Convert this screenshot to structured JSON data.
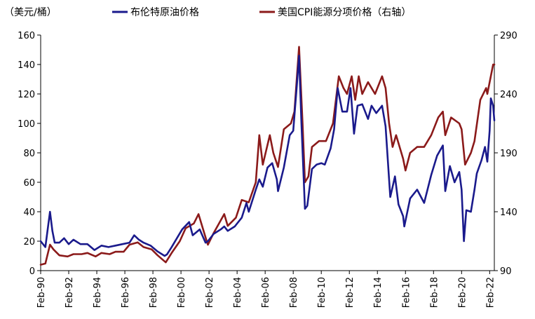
{
  "chart_data": {
    "type": "line",
    "title": "",
    "y_left_unit": "（美元/桶）",
    "y_left_lim": [
      0,
      160
    ],
    "y_left_ticks": [
      "0",
      "20",
      "40",
      "60",
      "80",
      "100",
      "120",
      "140",
      "160"
    ],
    "y_right_label": "",
    "y_right_lim": [
      90,
      290
    ],
    "y_right_ticks": [
      "90",
      "140",
      "190",
      "240",
      "290"
    ],
    "x_lim": [
      "1990-02",
      "2022-06"
    ],
    "x_tick_labels": [
      "Feb-90",
      "Feb-92",
      "Feb-94",
      "Feb-96",
      "Feb-98",
      "Feb-00",
      "Feb-02",
      "Feb-04",
      "Feb-06",
      "Feb-08",
      "Feb-10",
      "Feb-12",
      "Feb-14",
      "Feb-16",
      "Feb-18",
      "Feb-20",
      "Feb-22"
    ],
    "grid": false,
    "legend_position": "top",
    "series": [
      {
        "name": "布伦特原油价格",
        "axis": "left",
        "color": "#1a1a8c",
        "points": [
          [
            "1990-02",
            20
          ],
          [
            "1990-06",
            16
          ],
          [
            "1990-08",
            28
          ],
          [
            "1990-10",
            40
          ],
          [
            "1990-12",
            27
          ],
          [
            "1991-02",
            19
          ],
          [
            "1991-06",
            19
          ],
          [
            "1991-10",
            22
          ],
          [
            "1992-02",
            18
          ],
          [
            "1992-06",
            21
          ],
          [
            "1992-12",
            18
          ],
          [
            "1993-06",
            18
          ],
          [
            "1993-12",
            14
          ],
          [
            "1994-06",
            17
          ],
          [
            "1994-12",
            16
          ],
          [
            "1995-06",
            17
          ],
          [
            "1995-12",
            18
          ],
          [
            "1996-06",
            19
          ],
          [
            "1996-10",
            24
          ],
          [
            "1997-02",
            21
          ],
          [
            "1997-06",
            19
          ],
          [
            "1997-12",
            17
          ],
          [
            "1998-06",
            13
          ],
          [
            "1998-12",
            10
          ],
          [
            "1999-02",
            11
          ],
          [
            "1999-06",
            16
          ],
          [
            "1999-12",
            24
          ],
          [
            "2000-03",
            28
          ],
          [
            "2000-09",
            33
          ],
          [
            "2000-12",
            24
          ],
          [
            "2001-06",
            28
          ],
          [
            "2001-11",
            19
          ],
          [
            "2002-01",
            20
          ],
          [
            "2002-06",
            25
          ],
          [
            "2002-12",
            28
          ],
          [
            "2003-03",
            30
          ],
          [
            "2003-06",
            27
          ],
          [
            "2003-12",
            30
          ],
          [
            "2004-06",
            36
          ],
          [
            "2004-10",
            46
          ],
          [
            "2004-12",
            40
          ],
          [
            "2005-06",
            55
          ],
          [
            "2005-09",
            62
          ],
          [
            "2005-12",
            57
          ],
          [
            "2006-04",
            70
          ],
          [
            "2006-08",
            73
          ],
          [
            "2006-12",
            62
          ],
          [
            "2007-01",
            54
          ],
          [
            "2007-06",
            70
          ],
          [
            "2007-11",
            92
          ],
          [
            "2008-02",
            95
          ],
          [
            "2008-05",
            125
          ],
          [
            "2008-07",
            146
          ],
          [
            "2008-09",
            100
          ],
          [
            "2008-12",
            42
          ],
          [
            "2009-02",
            44
          ],
          [
            "2009-06",
            69
          ],
          [
            "2009-10",
            72
          ],
          [
            "2010-02",
            73
          ],
          [
            "2010-05",
            72
          ],
          [
            "2010-10",
            83
          ],
          [
            "2011-01",
            96
          ],
          [
            "2011-04",
            124
          ],
          [
            "2011-08",
            108
          ],
          [
            "2011-12",
            108
          ],
          [
            "2012-03",
            124
          ],
          [
            "2012-06",
            93
          ],
          [
            "2012-09",
            112
          ],
          [
            "2013-01",
            113
          ],
          [
            "2013-06",
            103
          ],
          [
            "2013-09",
            112
          ],
          [
            "2014-01",
            107
          ],
          [
            "2014-06",
            112
          ],
          [
            "2014-09",
            98
          ],
          [
            "2014-12",
            62
          ],
          [
            "2015-01",
            50
          ],
          [
            "2015-05",
            64
          ],
          [
            "2015-08",
            45
          ],
          [
            "2015-12",
            37
          ],
          [
            "2016-01",
            30
          ],
          [
            "2016-06",
            49
          ],
          [
            "2016-12",
            55
          ],
          [
            "2017-06",
            46
          ],
          [
            "2017-12",
            65
          ],
          [
            "2018-05",
            78
          ],
          [
            "2018-10",
            85
          ],
          [
            "2018-12",
            54
          ],
          [
            "2019-04",
            71
          ],
          [
            "2019-08",
            60
          ],
          [
            "2019-12",
            67
          ],
          [
            "2020-02",
            55
          ],
          [
            "2020-04",
            20
          ],
          [
            "2020-06",
            41
          ],
          [
            "2020-10",
            40
          ],
          [
            "2021-01",
            55
          ],
          [
            "2021-03",
            66
          ],
          [
            "2021-07",
            75
          ],
          [
            "2021-10",
            84
          ],
          [
            "2021-12",
            74
          ],
          [
            "2022-02",
            95
          ],
          [
            "2022-03",
            117
          ],
          [
            "2022-05",
            112
          ],
          [
            "2022-06",
            102
          ]
        ]
      },
      {
        "name": "美国CPI能源分项价格（右轴）",
        "axis": "right",
        "color": "#8b1a1a",
        "points": [
          [
            "1990-02",
            95
          ],
          [
            "1990-06",
            96
          ],
          [
            "1990-10",
            112
          ],
          [
            "1991-01",
            108
          ],
          [
            "1991-06",
            103
          ],
          [
            "1992-01",
            102
          ],
          [
            "1992-06",
            104
          ],
          [
            "1993-01",
            104
          ],
          [
            "1993-06",
            105
          ],
          [
            "1994-01",
            102
          ],
          [
            "1994-06",
            105
          ],
          [
            "1995-01",
            104
          ],
          [
            "1995-06",
            106
          ],
          [
            "1996-01",
            106
          ],
          [
            "1996-06",
            112
          ],
          [
            "1997-01",
            114
          ],
          [
            "1997-06",
            110
          ],
          [
            "1998-01",
            108
          ],
          [
            "1998-06",
            103
          ],
          [
            "1999-01",
            97
          ],
          [
            "1999-06",
            105
          ],
          [
            "2000-01",
            115
          ],
          [
            "2000-06",
            126
          ],
          [
            "2001-01",
            130
          ],
          [
            "2001-05",
            138
          ],
          [
            "2001-12",
            115
          ],
          [
            "2002-01",
            112
          ],
          [
            "2002-06",
            122
          ],
          [
            "2003-03",
            138
          ],
          [
            "2003-06",
            128
          ],
          [
            "2004-01",
            135
          ],
          [
            "2004-06",
            150
          ],
          [
            "2004-12",
            148
          ],
          [
            "2005-06",
            165
          ],
          [
            "2005-09",
            205
          ],
          [
            "2005-12",
            180
          ],
          [
            "2006-06",
            205
          ],
          [
            "2006-09",
            190
          ],
          [
            "2007-01",
            178
          ],
          [
            "2007-06",
            210
          ],
          [
            "2007-12",
            215
          ],
          [
            "2008-03",
            225
          ],
          [
            "2008-07",
            280
          ],
          [
            "2008-10",
            215
          ],
          [
            "2008-12",
            165
          ],
          [
            "2009-03",
            170
          ],
          [
            "2009-06",
            195
          ],
          [
            "2009-12",
            200
          ],
          [
            "2010-06",
            200
          ],
          [
            "2010-12",
            215
          ],
          [
            "2011-05",
            255
          ],
          [
            "2011-09",
            245
          ],
          [
            "2011-12",
            240
          ],
          [
            "2012-04",
            255
          ],
          [
            "2012-07",
            235
          ],
          [
            "2012-10",
            255
          ],
          [
            "2013-01",
            240
          ],
          [
            "2013-06",
            250
          ],
          [
            "2013-12",
            240
          ],
          [
            "2014-06",
            255
          ],
          [
            "2014-09",
            245
          ],
          [
            "2014-12",
            215
          ],
          [
            "2015-03",
            195
          ],
          [
            "2015-06",
            205
          ],
          [
            "2015-12",
            185
          ],
          [
            "2016-02",
            175
          ],
          [
            "2016-06",
            190
          ],
          [
            "2016-12",
            195
          ],
          [
            "2017-06",
            195
          ],
          [
            "2017-12",
            205
          ],
          [
            "2018-06",
            220
          ],
          [
            "2018-10",
            225
          ],
          [
            "2018-12",
            205
          ],
          [
            "2019-05",
            220
          ],
          [
            "2019-12",
            215
          ],
          [
            "2020-02",
            210
          ],
          [
            "2020-05",
            180
          ],
          [
            "2020-10",
            190
          ],
          [
            "2021-01",
            200
          ],
          [
            "2021-06",
            235
          ],
          [
            "2021-11",
            245
          ],
          [
            "2021-12",
            240
          ],
          [
            "2022-03",
            255
          ],
          [
            "2022-05",
            265
          ],
          [
            "2022-06",
            265
          ]
        ]
      }
    ]
  }
}
